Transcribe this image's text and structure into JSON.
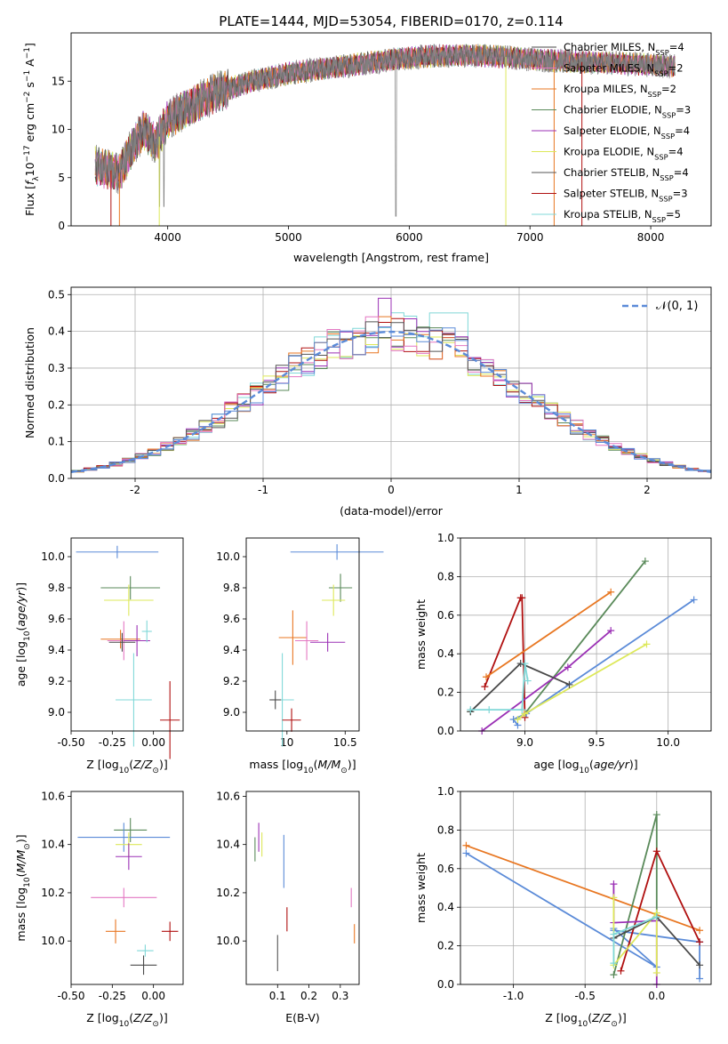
{
  "figure_title": "PLATE=1444, MJD=53054, FIBERID=0170, z=0.114",
  "models": [
    {
      "key": "CM",
      "name": "Chabrier MILES, N",
      "sub": "SSP",
      "suffix": "=4",
      "color": "#4a4a4a"
    },
    {
      "key": "SM",
      "name": "Salpeter MILES, N",
      "sub": "SSP",
      "suffix": "=2",
      "color": "#e377c2"
    },
    {
      "key": "KM",
      "name": "Kroupa MILES, N",
      "sub": "SSP",
      "suffix": "=2",
      "color": "#e87722"
    },
    {
      "key": "CE",
      "name": "Chabrier ELODIE, N",
      "sub": "SSP",
      "suffix": "=3",
      "color": "#5a8a5a"
    },
    {
      "key": "SE",
      "name": "Salpeter ELODIE, N",
      "sub": "SSP",
      "suffix": "=4",
      "color": "#9b30b5"
    },
    {
      "key": "KE",
      "name": "Kroupa ELODIE, N",
      "sub": "SSP",
      "suffix": "=4",
      "color": "#dde85a"
    },
    {
      "key": "CS",
      "name": "Chabrier STELIB, N",
      "sub": "SSP",
      "suffix": "=4",
      "color": "#555555"
    },
    {
      "key": "SS",
      "name": "Salpeter STELIB, N",
      "sub": "SSP",
      "suffix": "=3",
      "color": "#b01010"
    },
    {
      "key": "KS",
      "name": "Kroupa STELIB, N",
      "sub": "SSP",
      "suffix": "=5",
      "color": "#80d8d8"
    }
  ],
  "colors": {
    "data": "#808080",
    "gauss": "#5b8bd8",
    "blue": "#5b8bd8"
  },
  "chart_data": [
    {
      "type": "line",
      "xlabel": "wavelength [Angstrom, rest frame]",
      "ylabel": "Flux [f_λ 10^-17 erg cm^-2 s^-1 A^-1]",
      "xlim": [
        3200,
        8500
      ],
      "ylim": [
        0,
        20
      ],
      "xticks": [
        4000,
        5000,
        6000,
        7000,
        8000
      ],
      "yticks": [
        0,
        5,
        10,
        15
      ],
      "legend": "right",
      "spectrum_continuum": [
        [
          3400,
          6.2
        ],
        [
          3600,
          5.5
        ],
        [
          3700,
          8.0
        ],
        [
          3800,
          10.0
        ],
        [
          3900,
          8.5
        ],
        [
          4000,
          11.0
        ],
        [
          4200,
          12.5
        ],
        [
          4400,
          13.8
        ],
        [
          4700,
          15.0
        ],
        [
          5000,
          15.8
        ],
        [
          5300,
          16.3
        ],
        [
          5600,
          16.8
        ],
        [
          5900,
          17.3
        ],
        [
          6200,
          17.6
        ],
        [
          6500,
          17.7
        ],
        [
          6800,
          17.5
        ],
        [
          7100,
          17.2
        ],
        [
          7400,
          17.0
        ],
        [
          7700,
          16.9
        ],
        [
          8000,
          16.7
        ],
        [
          8200,
          16.5
        ]
      ]
    },
    {
      "type": "bar",
      "xlabel": "(data-model)/error",
      "ylabel": "Normed distribution",
      "xlim": [
        -2.5,
        2.5
      ],
      "ylim": [
        0,
        0.52
      ],
      "xticks": [
        -2,
        -1,
        0,
        1,
        2
      ],
      "yticks": [
        0.0,
        0.1,
        0.2,
        0.3,
        0.4,
        0.5
      ],
      "grid": true,
      "legend_label": "𝒩(0, 1)",
      "series": "normal distribution N(0,1)"
    },
    {
      "type": "scatter",
      "xlabel": "Z [log10(Z/Z⊙)]",
      "ylabel": "age  [log10(age/yr)]",
      "xlim": [
        -0.5,
        0.18
      ],
      "ylim": [
        8.88,
        10.12
      ],
      "xticks": [
        -0.5,
        -0.25,
        0.0
      ],
      "yticks": [
        9.0,
        9.2,
        9.4,
        9.6,
        9.8,
        10.0
      ],
      "points": [
        {
          "model": "KS",
          "x": -0.12,
          "y": 9.08,
          "xerr": 0.11,
          "yerr": 0.6
        },
        {
          "model": "CE",
          "x": -0.14,
          "y": 9.8,
          "xerr": 0.18,
          "yerr": 0.15
        },
        {
          "model": "KE",
          "x": -0.15,
          "y": 9.72,
          "xerr": 0.15,
          "yerr": 0.2
        },
        {
          "model": "KM",
          "x": -0.2,
          "y": 9.47,
          "xerr": 0.12,
          "yerr": 0.12
        },
        {
          "model": "SM",
          "x": -0.18,
          "y": 9.46,
          "xerr": 0.1,
          "yerr": 0.25
        },
        {
          "model": "CM",
          "x": -0.19,
          "y": 9.45,
          "xerr": 0.08,
          "yerr": 0.12
        },
        {
          "model": "SE",
          "x": -0.1,
          "y": 9.46,
          "xerr": 0.08,
          "yerr": 0.2
        },
        {
          "model": "KS",
          "x": -0.04,
          "y": 9.52,
          "xerr": 0.03,
          "yerr": 0.14
        },
        {
          "model": "blue",
          "x": -0.22,
          "y": 10.03,
          "xerr": 0.25,
          "yerr": 0.08
        },
        {
          "model": "SS",
          "x": 0.1,
          "y": 8.95,
          "xerr": 0.06,
          "yerr": 0.5
        }
      ]
    },
    {
      "type": "scatter",
      "xlabel": "mass [log10(M/M⊙)]",
      "ylabel": "",
      "xlim": [
        9.65,
        10.62
      ],
      "ylim": [
        8.88,
        10.12
      ],
      "xticks": [
        10.0,
        10.5
      ],
      "yticks": [
        9.0,
        9.2,
        9.4,
        9.6,
        9.8,
        10.0
      ],
      "points": [
        {
          "model": "blue",
          "x": 10.43,
          "y": 10.03,
          "xerr": 0.4,
          "yerr": 0.1
        },
        {
          "model": "CE",
          "x": 10.46,
          "y": 9.8,
          "xerr": 0.1,
          "yerr": 0.18
        },
        {
          "model": "KE",
          "x": 10.4,
          "y": 9.72,
          "xerr": 0.1,
          "yerr": 0.2
        },
        {
          "model": "KM",
          "x": 10.05,
          "y": 9.48,
          "xerr": 0.12,
          "yerr": 0.35
        },
        {
          "model": "SM",
          "x": 10.17,
          "y": 9.46,
          "xerr": 0.1,
          "yerr": 0.25
        },
        {
          "model": "SE",
          "x": 10.35,
          "y": 9.45,
          "xerr": 0.15,
          "yerr": 0.12
        },
        {
          "model": "KS",
          "x": 9.96,
          "y": 9.08,
          "xerr": 0.1,
          "yerr": 0.6
        },
        {
          "model": "CM",
          "x": 9.9,
          "y": 9.08,
          "xerr": 0.05,
          "yerr": 0.12
        },
        {
          "model": "SS",
          "x": 10.04,
          "y": 8.95,
          "xerr": 0.08,
          "yerr": 0.15
        }
      ]
    },
    {
      "type": "line",
      "xlabel": "age  [log10(age/yr)]",
      "ylabel": "mass weight",
      "xlim": [
        8.55,
        10.3
      ],
      "ylim": [
        0,
        1
      ],
      "xticks": [
        8.5,
        9.0,
        9.5,
        10.0
      ],
      "xticklabels": [
        "",
        "9.0",
        "9.5",
        "10.0"
      ],
      "yticks": [
        0.0,
        0.2,
        0.4,
        0.6,
        0.8,
        1.0
      ],
      "grid": true,
      "series": [
        {
          "model": "blue",
          "x": [
            8.95,
            8.92,
            9.01,
            10.18
          ],
          "y": [
            0.03,
            0.06,
            0.09,
            0.68
          ]
        },
        {
          "model": "CE",
          "x": 8.62,
          "y": 0.1
        },
        {
          "model": "CE2",
          "x": [
            9.0,
            9.84
          ],
          "y": [
            0.09,
            0.88
          ]
        },
        {
          "model": "SS",
          "x": [
            8.72,
            8.97,
            8.98,
            9.0
          ],
          "y": [
            0.23,
            0.69,
            0.69,
            0.07
          ]
        },
        {
          "model": "KM",
          "x": [
            8.73,
            9.6
          ],
          "y": [
            0.28,
            0.72
          ]
        },
        {
          "model": "SE",
          "x": [
            8.7,
            9.3,
            9.6
          ],
          "y": [
            0.0,
            0.33,
            0.52
          ]
        },
        {
          "model": "KE",
          "x": [
            8.95,
            9.0,
            9.85
          ],
          "y": [
            0.06,
            0.09,
            0.45
          ]
        },
        {
          "model": "CM",
          "x": [
            8.62,
            8.97,
            9.31
          ],
          "y": [
            0.1,
            0.35,
            0.24
          ]
        },
        {
          "model": "KS",
          "x": [
            8.62,
            8.75,
            8.98,
            9.0,
            9.02
          ],
          "y": [
            0.11,
            0.11,
            0.11,
            0.35,
            0.26
          ]
        }
      ]
    },
    {
      "type": "scatter",
      "xlabel": "Z [log10(Z/Z⊙)]",
      "ylabel": "mass [log10(M/M⊙)]",
      "xlim": [
        -0.5,
        0.18
      ],
      "ylim": [
        9.82,
        10.62
      ],
      "xticks": [
        -0.5,
        -0.25,
        0.0
      ],
      "yticks": [
        10.0,
        10.2,
        10.4,
        10.6
      ],
      "points": [
        {
          "model": "CE",
          "x": -0.14,
          "y": 10.46,
          "xerr": 0.1,
          "yerr": 0.1
        },
        {
          "model": "blue",
          "x": -0.18,
          "y": 10.43,
          "xerr": 0.28,
          "yerr": 0.12
        },
        {
          "model": "KE",
          "x": -0.15,
          "y": 10.4,
          "xerr": 0.08,
          "yerr": 0.1
        },
        {
          "model": "SE",
          "x": -0.15,
          "y": 10.35,
          "xerr": 0.08,
          "yerr": 0.11
        },
        {
          "model": "SM",
          "x": -0.18,
          "y": 10.18,
          "xerr": 0.2,
          "yerr": 0.08
        },
        {
          "model": "KM",
          "x": -0.23,
          "y": 10.04,
          "xerr": 0.06,
          "yerr": 0.1
        },
        {
          "model": "SS",
          "x": 0.1,
          "y": 10.04,
          "xerr": 0.05,
          "yerr": 0.08
        },
        {
          "model": "KS",
          "x": -0.05,
          "y": 9.96,
          "xerr": 0.05,
          "yerr": 0.05
        },
        {
          "model": "CM",
          "x": -0.06,
          "y": 9.9,
          "xerr": 0.08,
          "yerr": 0.08
        }
      ]
    },
    {
      "type": "scatter",
      "xlabel": "E(B-V)",
      "ylabel": "",
      "xlim": [
        0.0,
        0.36
      ],
      "ylim": [
        9.82,
        10.62
      ],
      "xticks": [
        0.1,
        0.2,
        0.3
      ],
      "yticks": [
        10.0,
        10.2,
        10.4,
        10.6
      ],
      "points": [
        {
          "model": "CE",
          "x": 0.028,
          "y": 10.38,
          "yerr": 0.1
        },
        {
          "model": "SE",
          "x": 0.04,
          "y": 10.43,
          "yerr": 0.12
        },
        {
          "model": "KE",
          "x": 0.05,
          "y": 10.4,
          "yerr": 0.1
        },
        {
          "model": "CS",
          "x": 0.1,
          "y": 9.95,
          "yerr": 0.15
        },
        {
          "model": "blue",
          "x": 0.12,
          "y": 10.33,
          "yerr": 0.22
        },
        {
          "model": "SS",
          "x": 0.13,
          "y": 10.09,
          "yerr": 0.1
        },
        {
          "model": "SM",
          "x": 0.335,
          "y": 10.18,
          "yerr": 0.08
        },
        {
          "model": "KM",
          "x": 0.345,
          "y": 10.03,
          "yerr": 0.08
        }
      ]
    },
    {
      "type": "line",
      "xlabel": "Z [log10(Z/Z⊙)]",
      "ylabel": "mass weight",
      "xlim": [
        -1.37,
        0.38
      ],
      "ylim": [
        0,
        1
      ],
      "xticks": [
        -1.0,
        -0.5,
        0.0
      ],
      "yticks": [
        0.0,
        0.2,
        0.4,
        0.6,
        0.8,
        1.0
      ],
      "grid": true,
      "series": [
        {
          "model": "blue",
          "x": [
            -1.33,
            0.0,
            -0.3,
            -0.3,
            0.3,
            0.3
          ],
          "y": [
            0.68,
            0.09,
            0.29,
            0.28,
            0.22,
            0.03
          ]
        },
        {
          "model": "KM",
          "x": [
            -1.33,
            0.3
          ],
          "y": [
            0.72,
            0.28
          ]
        },
        {
          "model": "CE",
          "x": [
            -0.3,
            0.0,
            0.0
          ],
          "y": [
            0.05,
            0.88,
            0.35
          ]
        },
        {
          "model": "SS",
          "x": [
            -0.25,
            0.0,
            0.3
          ],
          "y": [
            0.07,
            0.69,
            0.22
          ]
        },
        {
          "model": "SE",
          "x": [
            -0.3,
            -0.3,
            0.0,
            0.0
          ],
          "y": [
            0.52,
            0.32,
            0.33,
            0.0
          ]
        },
        {
          "model": "KE",
          "x": [
            -0.3,
            -0.3,
            0.0,
            0.0,
            0.0
          ],
          "y": [
            0.45,
            0.1,
            0.37,
            0.06,
            0.37
          ]
        },
        {
          "model": "CM",
          "x": [
            -0.3,
            0.0,
            0.3
          ],
          "y": [
            0.24,
            0.35,
            0.1
          ]
        },
        {
          "model": "KS",
          "x": [
            -0.3,
            -0.3,
            0.0
          ],
          "y": [
            0.11,
            0.26,
            0.35
          ]
        }
      ]
    }
  ]
}
